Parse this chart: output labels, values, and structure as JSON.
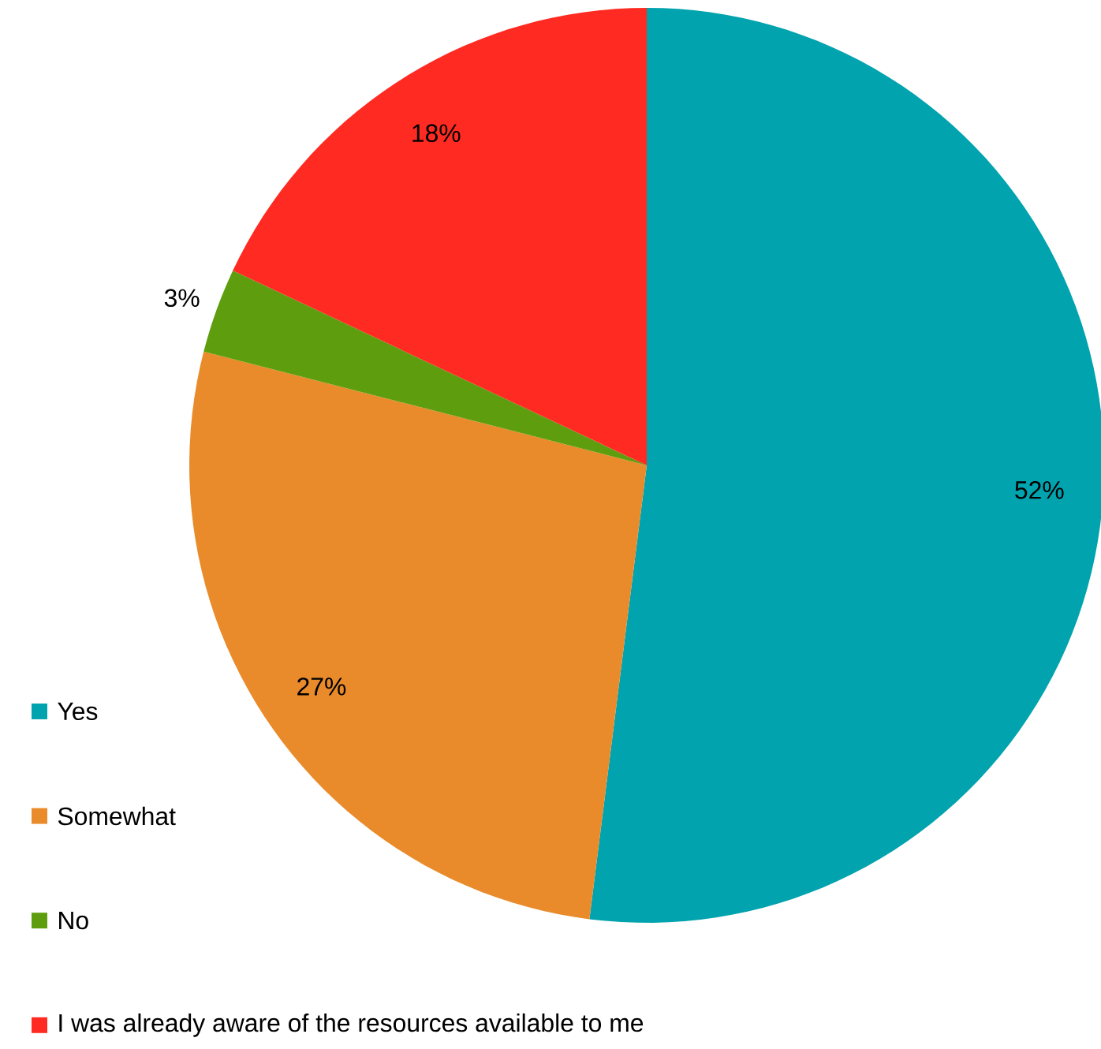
{
  "chart_data": {
    "type": "pie",
    "categories": [
      "Yes",
      "Somewhat",
      "No",
      "I was already aware of the resources available to me"
    ],
    "values": [
      52,
      27,
      3,
      18
    ],
    "colors": [
      "#00a3ae",
      "#e98b2a",
      "#5e9e0e",
      "#ff2a21"
    ],
    "value_labels": [
      "52%",
      "27%",
      "3%",
      "18%"
    ],
    "legend": "bottom left"
  }
}
